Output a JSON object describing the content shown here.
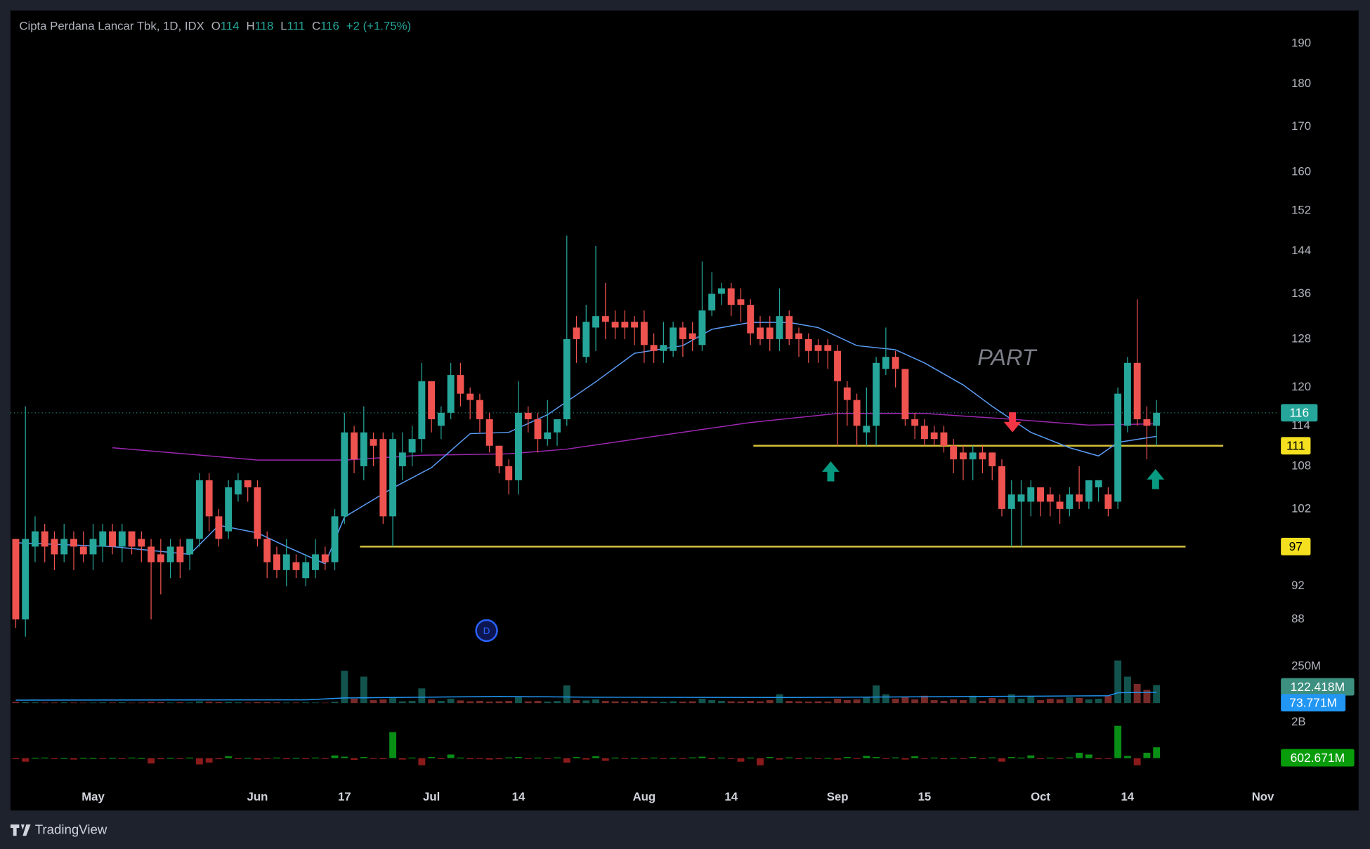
{
  "brand": "TradingView",
  "chart_data": {
    "type": "candlestick",
    "title": "Cipta Perdana Lancar Tbk, 1D, IDX",
    "ohlc_labels": [
      "O",
      "H",
      "L",
      "C"
    ],
    "change_label": "+2 (+1.75%)",
    "up_color": "#26a69a",
    "down_color": "#ef5350",
    "log_scale": true,
    "grid": false,
    "ylim": [
      84.4,
      198.6
    ],
    "yticks": [
      190,
      180,
      170,
      160,
      152,
      144,
      136,
      128,
      120,
      114,
      108,
      102,
      92,
      88
    ],
    "xlim": [
      -0.5,
      130.5
    ],
    "xticks": [
      {
        "value": 8,
        "label": "May"
      },
      {
        "value": 25,
        "label": "Jun"
      },
      {
        "value": 34,
        "label": "17"
      },
      {
        "value": 43,
        "label": "Jul"
      },
      {
        "value": 52,
        "label": "14"
      },
      {
        "value": 65,
        "label": "Aug"
      },
      {
        "value": 74,
        "label": "14"
      },
      {
        "value": 85,
        "label": "Sep"
      },
      {
        "value": 94,
        "label": "15"
      },
      {
        "value": 106,
        "label": "Oct"
      },
      {
        "value": 115,
        "label": "14"
      },
      {
        "value": 129,
        "label": "Nov"
      }
    ],
    "ohlc": [
      [
        98,
        98,
        87,
        88
      ],
      [
        88,
        117,
        86,
        98
      ],
      [
        97,
        101,
        95,
        99
      ],
      [
        99,
        100,
        95,
        97
      ],
      [
        98,
        99,
        94,
        96
      ],
      [
        96,
        100,
        95,
        98
      ],
      [
        98,
        99,
        94,
        97
      ],
      [
        97,
        99,
        95,
        96
      ],
      [
        96,
        100,
        94,
        98
      ],
      [
        97,
        100,
        95,
        99
      ],
      [
        99,
        100,
        96,
        97
      ],
      [
        97,
        100,
        95,
        99
      ],
      [
        99,
        99,
        96,
        97
      ],
      [
        98,
        99,
        95,
        97
      ],
      [
        97,
        98,
        88,
        95
      ],
      [
        96,
        98,
        91,
        95
      ],
      [
        95,
        98,
        93,
        97
      ],
      [
        97,
        98,
        93,
        95
      ],
      [
        96,
        98,
        94,
        98
      ],
      [
        98,
        107,
        97,
        106
      ],
      [
        106,
        107,
        99,
        101
      ],
      [
        101,
        102,
        97,
        98
      ],
      [
        99,
        106,
        98,
        105
      ],
      [
        104,
        107,
        103,
        106
      ],
      [
        106,
        106,
        103,
        105
      ],
      [
        105,
        106,
        97,
        98
      ],
      [
        98,
        99,
        93,
        95
      ],
      [
        96,
        97,
        93,
        94
      ],
      [
        94,
        98,
        92,
        96
      ],
      [
        95,
        96,
        93,
        94
      ],
      [
        93,
        96,
        92,
        95
      ],
      [
        94,
        98,
        93,
        96
      ],
      [
        96,
        97,
        94,
        95
      ],
      [
        95,
        102,
        94,
        101
      ],
      [
        101,
        116,
        100,
        113
      ],
      [
        113,
        114,
        107,
        109
      ],
      [
        108,
        117,
        106,
        113
      ],
      [
        112,
        113,
        108,
        111
      ],
      [
        112,
        113,
        100,
        101
      ],
      [
        101,
        113,
        97,
        112
      ],
      [
        108,
        113,
        106,
        110
      ],
      [
        110,
        114,
        108,
        112
      ],
      [
        112,
        124,
        110,
        121
      ],
      [
        121,
        121,
        113,
        115
      ],
      [
        114,
        117,
        112,
        116
      ],
      [
        116,
        124,
        115,
        122
      ],
      [
        122,
        124,
        117,
        119
      ],
      [
        119,
        120,
        115,
        118
      ],
      [
        118,
        119,
        113,
        115
      ],
      [
        115,
        116,
        110,
        111
      ],
      [
        111,
        111,
        107,
        108
      ],
      [
        108,
        109,
        104,
        106
      ],
      [
        106,
        121,
        104,
        116
      ],
      [
        116,
        117,
        113,
        115
      ],
      [
        115,
        116,
        110,
        112
      ],
      [
        112,
        118,
        111,
        113
      ],
      [
        113,
        115,
        111,
        115
      ],
      [
        115,
        147,
        114,
        128
      ],
      [
        130,
        132,
        124,
        128
      ],
      [
        125,
        134,
        124,
        131
      ],
      [
        130,
        145,
        126,
        132
      ],
      [
        132,
        138,
        128,
        131
      ],
      [
        131,
        133,
        128,
        130
      ],
      [
        131,
        133,
        128,
        130
      ],
      [
        131,
        132,
        127,
        130
      ],
      [
        131,
        133,
        124,
        127
      ],
      [
        127,
        129,
        124,
        126
      ],
      [
        126,
        131,
        124,
        127
      ],
      [
        126,
        131,
        125,
        130
      ],
      [
        130,
        131,
        125,
        128
      ],
      [
        129,
        131,
        126,
        128
      ],
      [
        127,
        142,
        126,
        133
      ],
      [
        133,
        140,
        132,
        136
      ],
      [
        136,
        138,
        134,
        137
      ],
      [
        137,
        138,
        132,
        134
      ],
      [
        135,
        137,
        131,
        134
      ],
      [
        134,
        135,
        127,
        129
      ],
      [
        130,
        132,
        127,
        128
      ],
      [
        130,
        132,
        126,
        128
      ],
      [
        128,
        137,
        126,
        132
      ],
      [
        132,
        133,
        127,
        128
      ],
      [
        129,
        130,
        125,
        128
      ],
      [
        128,
        129,
        124,
        126
      ],
      [
        127,
        128,
        124,
        126
      ],
      [
        127,
        128,
        123,
        126
      ],
      [
        126,
        127,
        111,
        121
      ],
      [
        120,
        121,
        114,
        118
      ],
      [
        118,
        119,
        111,
        114
      ],
      [
        113,
        120,
        111,
        114
      ],
      [
        114,
        125,
        111,
        124
      ],
      [
        123,
        130,
        122,
        125
      ],
      [
        125,
        126,
        120,
        123
      ],
      [
        123,
        123,
        114,
        115
      ],
      [
        115,
        116,
        112,
        114
      ],
      [
        114,
        115,
        111,
        112
      ],
      [
        113,
        114,
        111,
        112
      ],
      [
        113,
        114,
        110,
        111
      ],
      [
        111,
        112,
        107,
        109
      ],
      [
        110,
        111,
        106,
        109
      ],
      [
        109,
        111,
        106,
        110
      ],
      [
        110,
        111,
        107,
        109
      ],
      [
        110,
        110,
        106,
        108
      ],
      [
        108,
        109,
        101,
        102
      ],
      [
        102,
        106,
        97,
        104
      ],
      [
        103,
        106,
        97,
        104
      ],
      [
        103,
        106,
        101,
        105
      ],
      [
        105,
        105,
        101,
        103
      ],
      [
        104,
        105,
        101,
        103
      ],
      [
        103,
        104,
        100,
        102
      ],
      [
        102,
        105,
        101,
        104
      ],
      [
        104,
        108,
        102,
        103
      ],
      [
        103,
        106,
        102,
        106
      ],
      [
        105,
        106,
        103,
        106
      ],
      [
        104,
        105,
        101,
        102
      ],
      [
        103,
        120,
        102,
        119
      ],
      [
        114,
        125,
        113,
        124
      ],
      [
        124,
        135,
        114,
        115
      ],
      [
        115,
        117,
        109,
        114
      ],
      [
        114,
        118,
        111,
        116
      ]
    ],
    "ma_fast": {
      "color": "#5b9cf6",
      "x": [
        0,
        10,
        18,
        21,
        25,
        28,
        32,
        34,
        39,
        43,
        47,
        51,
        55,
        60,
        64,
        69,
        72,
        76,
        80,
        83,
        87,
        91,
        94,
        98,
        101,
        105,
        109,
        112,
        114,
        118
      ],
      "values": [
        97.5,
        97,
        96,
        99.8,
        98.8,
        97,
        94.8,
        100.9,
        104.9,
        107.8,
        112.8,
        113,
        115.7,
        120.9,
        125.6,
        126.9,
        129.7,
        130.9,
        130.9,
        130,
        126.9,
        126.2,
        124,
        120.4,
        117,
        113,
        110.7,
        109.5,
        111.5,
        112.4
      ]
    },
    "ma_slow": {
      "color": "#9c27b0",
      "x": [
        10,
        25,
        34,
        42,
        51,
        57,
        67,
        76,
        85,
        94,
        103,
        111,
        118
      ],
      "values": [
        110.7,
        108.9,
        108.9,
        109.6,
        109.8,
        110.5,
        112.6,
        114.5,
        115.9,
        115.9,
        115,
        114.1,
        114.3
      ]
    },
    "hlines": [
      {
        "value": 111,
        "from": 76.3,
        "to": 124.9,
        "color": "#d4c03a"
      },
      {
        "value": 97,
        "from": 35.6,
        "to": 121,
        "color": "#d4c03a"
      }
    ],
    "arrows": [
      {
        "dir": "up",
        "x": 84.3,
        "y": 107.2,
        "color": "#089981"
      },
      {
        "dir": "up",
        "x": 117.9,
        "y": 106.1,
        "color": "#089981"
      },
      {
        "dir": "down",
        "x": 103.1,
        "y": 114.6,
        "color": "#f23645"
      }
    ],
    "annotations": [
      {
        "text": "PART",
        "x": 102.5,
        "y": 124.6
      }
    ],
    "marker": {
      "text": "D",
      "x": 48.7,
      "y": 86.7
    },
    "volume": {
      "ylim": [
        0,
        315
      ],
      "yticks": [
        {
          "value": 250,
          "label": "250M"
        }
      ],
      "last_value_label": "122.418M",
      "values": [
        8,
        6,
        5,
        4,
        4,
        5,
        4,
        3,
        4,
        5,
        4,
        5,
        3,
        4,
        9,
        6,
        4,
        5,
        4,
        12,
        9,
        6,
        8,
        5,
        4,
        7,
        6,
        5,
        4,
        4,
        5,
        4,
        3,
        9,
        220,
        30,
        180,
        20,
        25,
        40,
        12,
        15,
        100,
        25,
        15,
        30,
        18,
        12,
        15,
        10,
        12,
        15,
        40,
        12,
        15,
        10,
        14,
        120,
        20,
        18,
        25,
        15,
        12,
        10,
        12,
        15,
        10,
        8,
        12,
        10,
        12,
        30,
        20,
        15,
        12,
        10,
        15,
        12,
        20,
        60,
        15,
        12,
        10,
        12,
        10,
        30,
        20,
        25,
        40,
        120,
        60,
        30,
        40,
        25,
        50,
        20,
        15,
        25,
        20,
        50,
        15,
        35,
        25,
        60,
        30,
        45,
        20,
        30,
        25,
        40,
        35,
        25,
        30,
        50,
        290,
        180,
        130,
        90,
        122.418
      ],
      "ma": {
        "color": "#2196f3",
        "x": [
          0,
          30,
          34,
          50,
          60,
          80,
          100,
          113,
          114,
          118
        ],
        "values": [
          20,
          22,
          35,
          45,
          40,
          38,
          45,
          50,
          70,
          73.771
        ],
        "last_value_label": "73.771M"
      }
    },
    "flow": {
      "ylim": [
        -1070,
        2240
      ],
      "yticks": [
        {
          "value": 2000,
          "label": "2B"
        },
        0
      ],
      "up_color": "#0a8f16",
      "down_color": "#8b1a1a",
      "last_value_label": "602.671M",
      "values": [
        -60,
        -200,
        20,
        30,
        -20,
        10,
        -80,
        20,
        10,
        -30,
        20,
        -40,
        30,
        10,
        -300,
        -60,
        20,
        -50,
        30,
        -350,
        -250,
        -60,
        100,
        -40,
        20,
        -80,
        -40,
        30,
        -60,
        20,
        -50,
        30,
        -20,
        150,
        80,
        -100,
        60,
        -40,
        -60,
        1450,
        -80,
        30,
        -400,
        60,
        -50,
        200,
        30,
        -60,
        -40,
        -80,
        -60,
        40,
        60,
        -40,
        30,
        -50,
        40,
        -250,
        60,
        -80,
        100,
        -150,
        30,
        -40,
        20,
        -60,
        30,
        -40,
        20,
        -30,
        40,
        80,
        -60,
        30,
        -40,
        -200,
        30,
        -400,
        60,
        -80,
        40,
        -60,
        30,
        -40,
        20,
        -80,
        60,
        -40,
        120,
        60,
        -50,
        40,
        -80,
        100,
        -40,
        30,
        -60,
        20,
        -40,
        60,
        -30,
        40,
        -200,
        60,
        30,
        150,
        -40,
        30,
        -50,
        40,
        300,
        200,
        -60,
        -40,
        1800,
        120,
        -400,
        300,
        602.671
      ]
    }
  }
}
